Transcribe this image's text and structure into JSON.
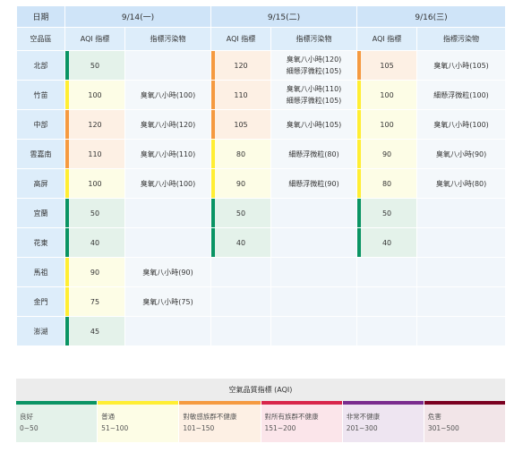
{
  "header": {
    "date_label": "日期",
    "site_label": "空品區",
    "aqi_col": "AQI 指標",
    "pollutant_col": "指標污染物",
    "dates": [
      "9/14(一)",
      "9/15(二)",
      "9/16(三)"
    ]
  },
  "colors": {
    "good": "#0a9464",
    "moderate": "#ffee33",
    "usg": "#f59a40",
    "unhealthy": "#d8254a",
    "very_unhealthy": "#7a2c8e",
    "hazardous": "#7b0020"
  },
  "rows": [
    {
      "region": "北部",
      "days": [
        {
          "aqi": "50",
          "level": "good",
          "pollutant": ""
        },
        {
          "aqi": "120",
          "level": "usg",
          "pollutant": "臭氧八小時(120)\n細懸浮微粒(105)"
        },
        {
          "aqi": "105",
          "level": "usg",
          "pollutant": "臭氧八小時(105)"
        }
      ]
    },
    {
      "region": "竹苗",
      "days": [
        {
          "aqi": "100",
          "level": "moderate",
          "pollutant": "臭氧八小時(100)"
        },
        {
          "aqi": "110",
          "level": "usg",
          "pollutant": "臭氧八小時(110)\n細懸浮微粒(105)"
        },
        {
          "aqi": "100",
          "level": "moderate",
          "pollutant": "細懸浮微粒(100)"
        }
      ]
    },
    {
      "region": "中部",
      "days": [
        {
          "aqi": "120",
          "level": "usg",
          "pollutant": "臭氧八小時(120)"
        },
        {
          "aqi": "105",
          "level": "usg",
          "pollutant": "臭氧八小時(105)"
        },
        {
          "aqi": "100",
          "level": "moderate",
          "pollutant": "臭氧八小時(100)"
        }
      ]
    },
    {
      "region": "雲嘉南",
      "days": [
        {
          "aqi": "110",
          "level": "usg",
          "pollutant": "臭氧八小時(110)"
        },
        {
          "aqi": "80",
          "level": "moderate",
          "pollutant": "細懸浮微粒(80)"
        },
        {
          "aqi": "90",
          "level": "moderate",
          "pollutant": "臭氧八小時(90)"
        }
      ]
    },
    {
      "region": "高屏",
      "days": [
        {
          "aqi": "100",
          "level": "moderate",
          "pollutant": "臭氧八小時(100)"
        },
        {
          "aqi": "90",
          "level": "moderate",
          "pollutant": "細懸浮微粒(90)"
        },
        {
          "aqi": "80",
          "level": "moderate",
          "pollutant": "臭氧八小時(80)"
        }
      ]
    },
    {
      "region": "宜蘭",
      "days": [
        {
          "aqi": "50",
          "level": "good",
          "pollutant": ""
        },
        {
          "aqi": "50",
          "level": "good",
          "pollutant": ""
        },
        {
          "aqi": "50",
          "level": "good",
          "pollutant": ""
        }
      ]
    },
    {
      "region": "花東",
      "days": [
        {
          "aqi": "40",
          "level": "good",
          "pollutant": ""
        },
        {
          "aqi": "40",
          "level": "good",
          "pollutant": ""
        },
        {
          "aqi": "40",
          "level": "good",
          "pollutant": ""
        }
      ]
    },
    {
      "region": "馬祖",
      "days": [
        {
          "aqi": "90",
          "level": "moderate",
          "pollutant": "臭氧八小時(90)"
        },
        {
          "aqi": "",
          "level": "",
          "pollutant": ""
        },
        {
          "aqi": "",
          "level": "",
          "pollutant": ""
        }
      ]
    },
    {
      "region": "金門",
      "days": [
        {
          "aqi": "75",
          "level": "moderate",
          "pollutant": "臭氧八小時(75)"
        },
        {
          "aqi": "",
          "level": "",
          "pollutant": ""
        },
        {
          "aqi": "",
          "level": "",
          "pollutant": ""
        }
      ]
    },
    {
      "region": "澎湖",
      "days": [
        {
          "aqi": "45",
          "level": "good",
          "pollutant": ""
        },
        {
          "aqi": "",
          "level": "",
          "pollutant": ""
        },
        {
          "aqi": "",
          "level": "",
          "pollutant": ""
        }
      ]
    }
  ],
  "legend": {
    "title": "空氣品質指標 (AQI)",
    "items": [
      {
        "label": "良好",
        "range": "0~50",
        "level": "good",
        "bg": "#e4f2ea"
      },
      {
        "label": "普通",
        "range": "51~100",
        "level": "moderate",
        "bg": "#fdfde6"
      },
      {
        "label": "對敏感族群不健康",
        "range": "101~150",
        "level": "usg",
        "bg": "#fdf0e4"
      },
      {
        "label": "對所有族群不健康",
        "range": "151~200",
        "level": "unhealthy",
        "bg": "#fbe5ea"
      },
      {
        "label": "非常不健康",
        "range": "201~300",
        "level": "very_unhealthy",
        "bg": "#eee5f1"
      },
      {
        "label": "危害",
        "range": "301~500",
        "level": "hazardous",
        "bg": "#f2e5e8"
      }
    ]
  }
}
